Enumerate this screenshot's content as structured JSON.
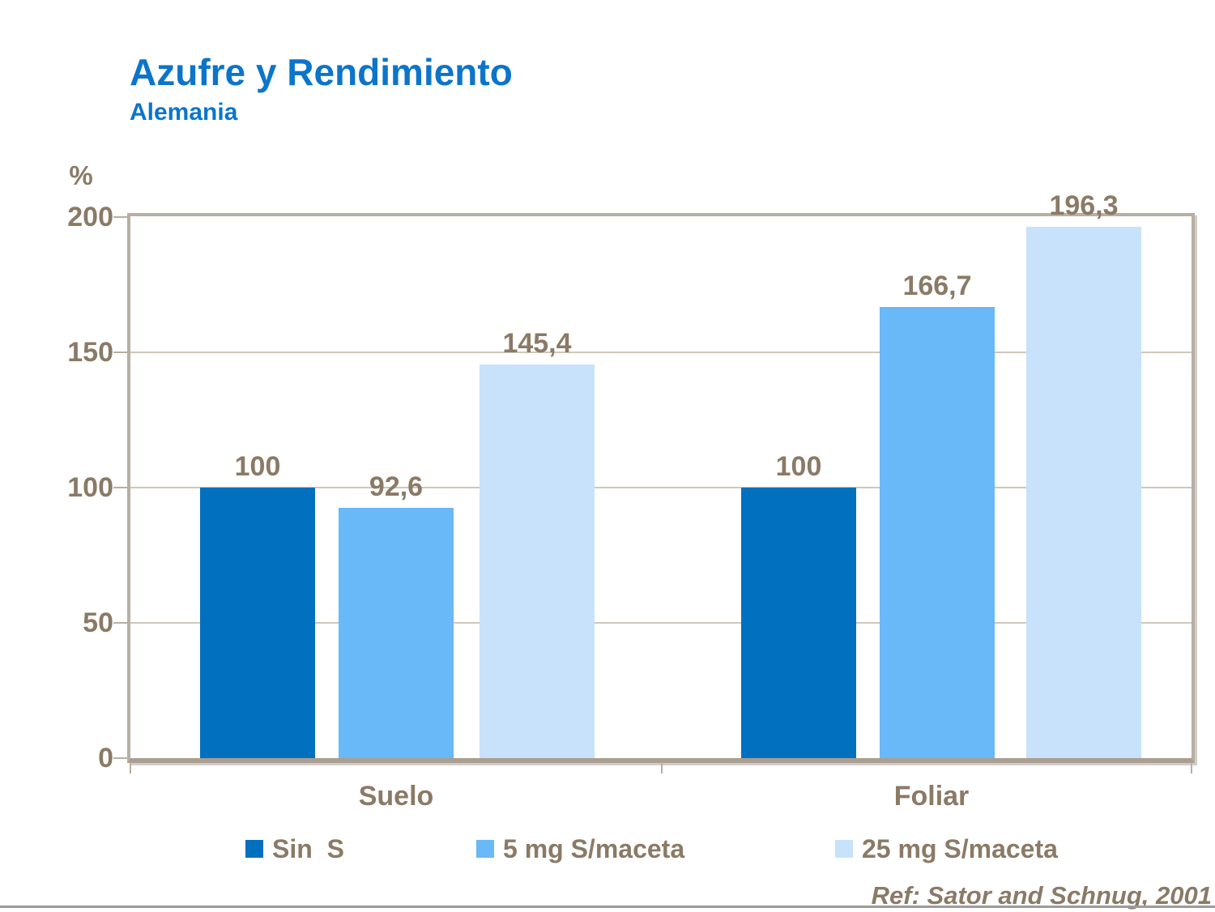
{
  "slide": {
    "title": "Azufre y Rendimiento",
    "subtitle": "Alemania",
    "reference": "Ref: Sator and Schnug, 2001"
  },
  "colors": {
    "title_blue": "#0C75C9",
    "text_brown_gray": "#8A7A66",
    "plot_border_tan": "#B8AEA2",
    "baseline_tan": "#A99E90",
    "gridline": "#CFC7BB",
    "bottom_rule_gray": "#9C9C9C",
    "series_dark_blue": "#0070BF",
    "series_medium_blue": "#69B8F8",
    "series_light_blue": "#C7E2FA"
  },
  "chart_data": {
    "type": "bar",
    "title": "Azufre y Rendimiento",
    "subtitle": "Alemania",
    "ylabel": "%",
    "xlabel": "",
    "ylim": [
      0,
      200
    ],
    "yticks": [
      0,
      50,
      100,
      150,
      200
    ],
    "grid": true,
    "legend_position": "bottom",
    "categories": [
      "Suelo",
      "Foliar"
    ],
    "series": [
      {
        "name": "Sin  S",
        "color": "#0070BF",
        "values": [
          100,
          100
        ],
        "labels": [
          "100",
          "100"
        ]
      },
      {
        "name": "5 mg S/maceta",
        "color": "#69B8F8",
        "values": [
          92.6,
          166.7
        ],
        "labels": [
          "92,6",
          "166,7"
        ]
      },
      {
        "name": "25 mg S/maceta",
        "color": "#C7E2FA",
        "values": [
          145.4,
          196.3
        ],
        "labels": [
          "145,4",
          "196,3"
        ]
      }
    ],
    "reference": "Ref: Sator and Schnug, 2001"
  }
}
